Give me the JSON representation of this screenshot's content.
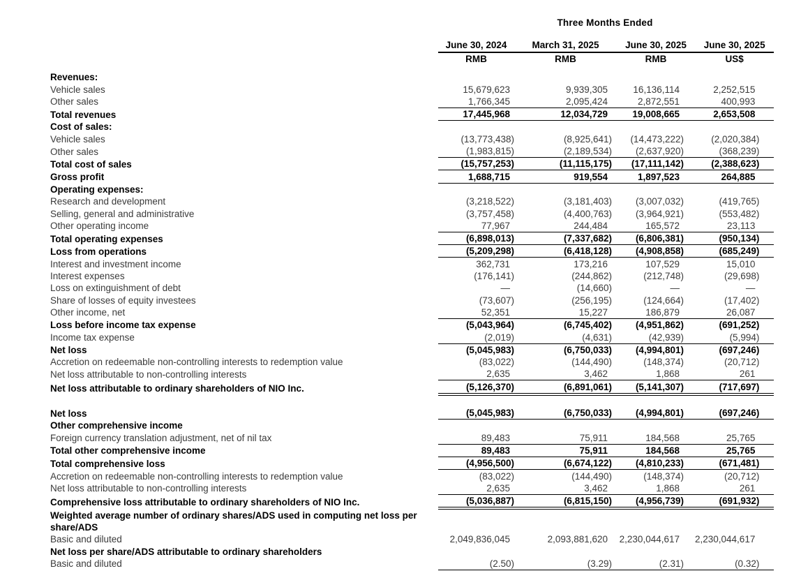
{
  "colors": {
    "background": "#ffffff",
    "text_regular": "#3a3a3a",
    "text_bold": "#000000",
    "rule": "#000000"
  },
  "table": {
    "title": "Three Months Ended",
    "columns": [
      {
        "date": "June 30, 2024",
        "currency": "RMB"
      },
      {
        "date": "March 31, 2025",
        "currency": "RMB"
      },
      {
        "date": "June 30, 2025",
        "currency": "RMB"
      },
      {
        "date": "June 30, 2025",
        "currency": "US$"
      }
    ],
    "rows": [
      {
        "label": "Revenues:",
        "style": "section"
      },
      {
        "label": "Vehicle sales",
        "style": "item",
        "values": [
          "15,679,623",
          "9,939,305",
          "16,136,114",
          "2,252,515"
        ]
      },
      {
        "label": "Other sales",
        "style": "item",
        "values": [
          "1,766,345",
          "2,095,424",
          "2,872,551",
          "400,993"
        ],
        "rule_below": "single"
      },
      {
        "label": "Total revenues",
        "style": "total",
        "values": [
          "17,445,968",
          "12,034,729",
          "19,008,665",
          "2,653,508"
        ],
        "rule_below": "single"
      },
      {
        "label": "Cost of sales:",
        "style": "section"
      },
      {
        "label": "Vehicle sales",
        "style": "item",
        "values": [
          "(13,773,438)",
          "(8,925,641)",
          "(14,473,222)",
          "(2,020,384)"
        ]
      },
      {
        "label": "Other sales",
        "style": "item",
        "values": [
          "(1,983,815)",
          "(2,189,534)",
          "(2,637,920)",
          "(368,239)"
        ],
        "rule_below": "single"
      },
      {
        "label": "Total cost of sales",
        "style": "total",
        "values": [
          "(15,757,253)",
          "(11,115,175)",
          "(17,111,142)",
          "(2,388,623)"
        ],
        "rule_below": "single"
      },
      {
        "label": "Gross profit",
        "style": "total",
        "values": [
          "1,688,715",
          "919,554",
          "1,897,523",
          "264,885"
        ],
        "rule_below": "single"
      },
      {
        "label": "Operating expenses:",
        "style": "section"
      },
      {
        "label": "Research and development",
        "style": "item",
        "values": [
          "(3,218,522)",
          "(3,181,403)",
          "(3,007,032)",
          "(419,765)"
        ]
      },
      {
        "label": "Selling, general and administrative",
        "style": "item",
        "values": [
          "(3,757,458)",
          "(4,400,763)",
          "(3,964,921)",
          "(553,482)"
        ]
      },
      {
        "label": "Other operating income",
        "style": "item",
        "values": [
          "77,967",
          "244,484",
          "165,572",
          "23,113"
        ],
        "rule_below": "single"
      },
      {
        "label": "Total operating expenses",
        "style": "total",
        "values": [
          "(6,898,013)",
          "(7,337,682)",
          "(6,806,381)",
          "(950,134)"
        ],
        "rule_below": "single"
      },
      {
        "label": "Loss from operations",
        "style": "total",
        "values": [
          "(5,209,298)",
          "(6,418,128)",
          "(4,908,858)",
          "(685,249)"
        ],
        "rule_below": "single"
      },
      {
        "label": "Interest and investment income",
        "style": "item",
        "values": [
          "362,731",
          "173,216",
          "107,529",
          "15,010"
        ]
      },
      {
        "label": "Interest expenses",
        "style": "item",
        "values": [
          "(176,141)",
          "(244,862)",
          "(212,748)",
          "(29,698)"
        ]
      },
      {
        "label": "Loss on extinguishment of debt",
        "style": "item",
        "values": [
          "—",
          "(14,660)",
          "—",
          "—"
        ]
      },
      {
        "label": "Share of losses of equity investees",
        "style": "item",
        "values": [
          "(73,607)",
          "(256,195)",
          "(124,664)",
          "(17,402)"
        ]
      },
      {
        "label": "Other income, net",
        "style": "item",
        "values": [
          "52,351",
          "15,227",
          "186,879",
          "26,087"
        ],
        "rule_below": "single"
      },
      {
        "label": "Loss before income tax expense",
        "style": "total",
        "values": [
          "(5,043,964)",
          "(6,745,402)",
          "(4,951,862)",
          "(691,252)"
        ]
      },
      {
        "label": "Income tax expense",
        "style": "item",
        "values": [
          "(2,019)",
          "(4,631)",
          "(42,939)",
          "(5,994)"
        ],
        "rule_below": "single"
      },
      {
        "label": "Net loss",
        "style": "total",
        "values": [
          "(5,045,983)",
          "(6,750,033)",
          "(4,994,801)",
          "(697,246)"
        ]
      },
      {
        "label": "Accretion on redeemable non-controlling interests to redemption value",
        "style": "item",
        "values": [
          "(83,022)",
          "(144,490)",
          "(148,374)",
          "(20,712)"
        ]
      },
      {
        "label": "Net loss attributable to non-controlling interests",
        "style": "item",
        "values": [
          "2,635",
          "3,462",
          "1,868",
          "261"
        ],
        "rule_below": "single"
      },
      {
        "label": "Net loss attributable to ordinary shareholders of NIO Inc.",
        "style": "total",
        "values": [
          "(5,126,370)",
          "(6,891,061)",
          "(5,141,307)",
          "(717,697)"
        ],
        "rule_below": "double"
      },
      {
        "style": "spacer"
      },
      {
        "label": "Net loss",
        "style": "total",
        "values": [
          "(5,045,983)",
          "(6,750,033)",
          "(4,994,801)",
          "(697,246)"
        ],
        "rule_below": "single"
      },
      {
        "label": "Other comprehensive income",
        "style": "section"
      },
      {
        "label": "Foreign currency translation adjustment, net of nil tax",
        "style": "item",
        "values": [
          "89,483",
          "75,911",
          "184,568",
          "25,765"
        ],
        "rule_below": "single"
      },
      {
        "label": "Total other comprehensive income",
        "style": "total",
        "values": [
          "89,483",
          "75,911",
          "184,568",
          "25,765"
        ],
        "rule_below": "single"
      },
      {
        "label": "Total comprehensive loss",
        "style": "total",
        "values": [
          "(4,956,500)",
          "(6,674,122)",
          "(4,810,233)",
          "(671,481)"
        ],
        "rule_below": "single"
      },
      {
        "label": "Accretion on redeemable non-controlling interests to redemption value",
        "style": "item",
        "values": [
          "(83,022)",
          "(144,490)",
          "(148,374)",
          "(20,712)"
        ]
      },
      {
        "label": "Net loss attributable to non-controlling interests",
        "style": "item",
        "values": [
          "2,635",
          "3,462",
          "1,868",
          "261"
        ],
        "rule_below": "single"
      },
      {
        "label": "Comprehensive loss attributable to ordinary shareholders of NIO Inc.",
        "style": "total",
        "values": [
          "(5,036,887)",
          "(6,815,150)",
          "(4,956,739)",
          "(691,932)"
        ],
        "rule_below": "double"
      },
      {
        "label": "Weighted average number of ordinary shares/ADS used in computing net loss per share/ADS",
        "style": "section",
        "wrap": true
      },
      {
        "label": "Basic and diluted",
        "style": "item",
        "values": [
          "2,049,836,045",
          "2,093,881,620",
          "2,230,044,617",
          "2,230,044,617"
        ]
      },
      {
        "label": "Net loss per share/ADS attributable to ordinary shareholders",
        "style": "section"
      },
      {
        "label": "Basic and diluted",
        "style": "item",
        "values": [
          "(2.50)",
          "(3.29)",
          "(2.31)",
          "(0.32)"
        ],
        "rule_below": "single"
      }
    ]
  }
}
